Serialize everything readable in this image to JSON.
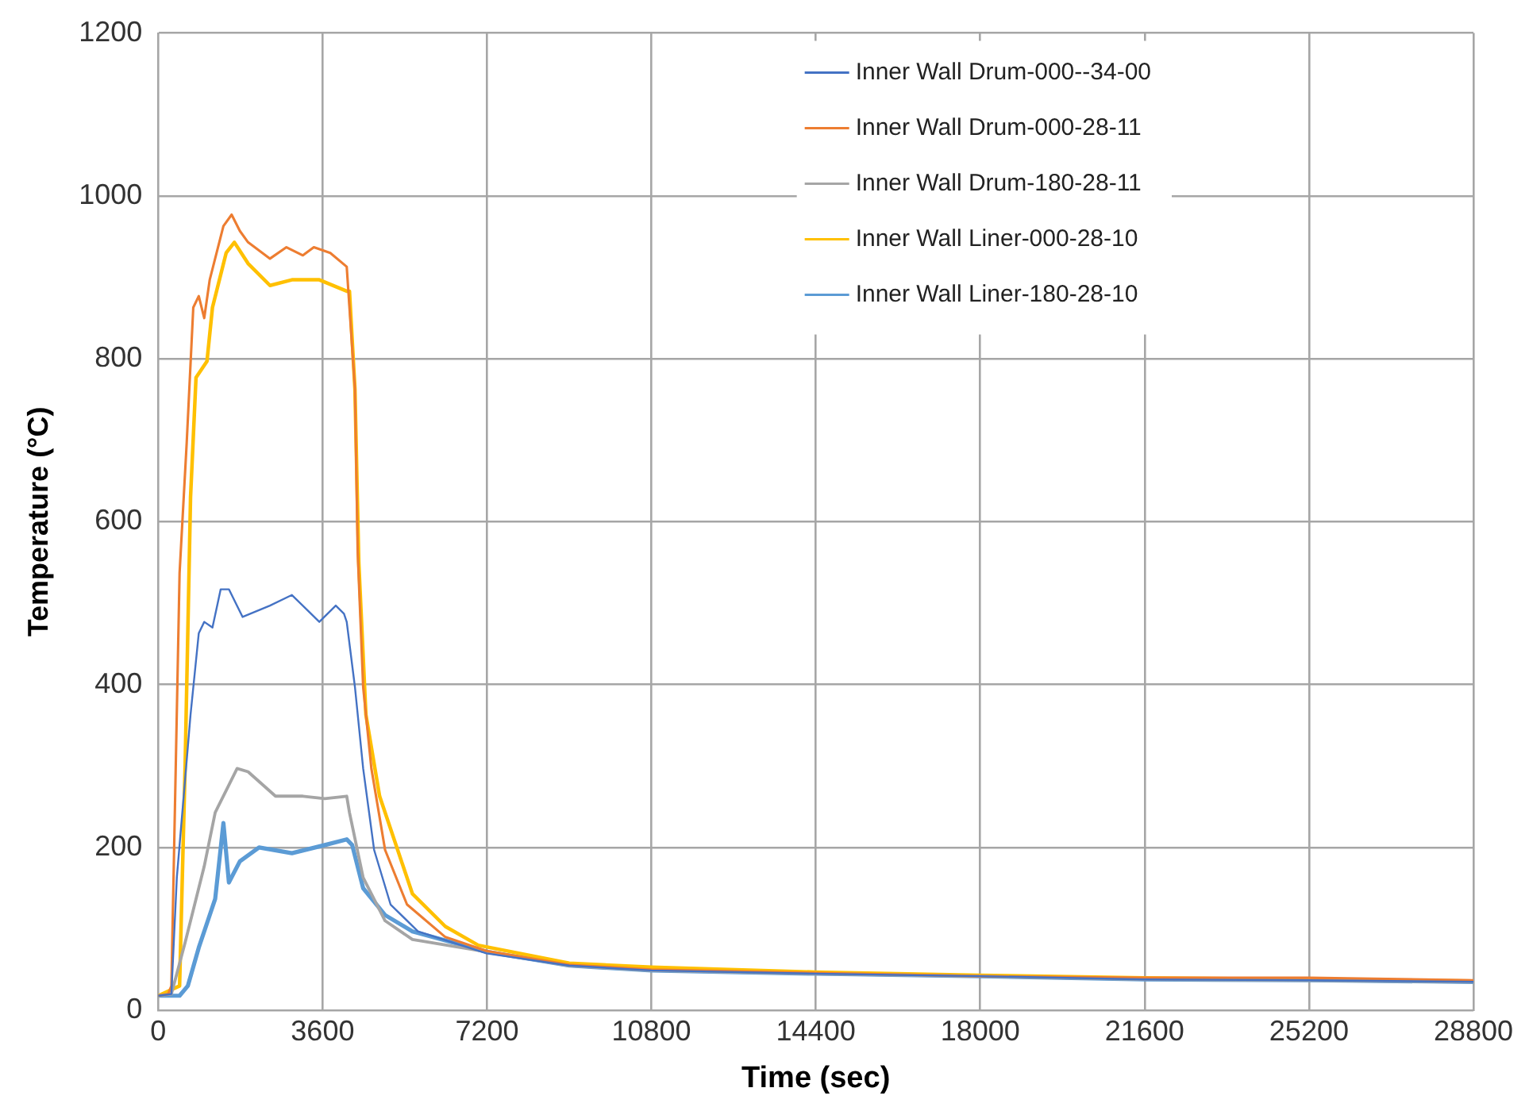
{
  "chart_data": {
    "type": "line",
    "xlabel": "Time (sec)",
    "ylabel": "Temperature (°C)",
    "xlim": [
      0,
      28800
    ],
    "xticks": [
      0,
      3600,
      7200,
      10800,
      14400,
      18000,
      21600,
      25200,
      28800
    ],
    "ylim": [
      0,
      1200
    ],
    "yticks": [
      0,
      200,
      400,
      600,
      800,
      1000,
      1200
    ],
    "grid": true,
    "legend": "top right",
    "marker": "none",
    "line_style": "solid",
    "series": [
      {
        "name": "Inner Wall Drum-000--34-00",
        "color": "#4472c4",
        "x": [
          0,
          288,
          408,
          708,
          888,
          1008,
          1188,
          1368,
          1548,
          1848,
          2448,
          2928,
          3528,
          3888,
          4068,
          4128,
          4308,
          4488,
          4728,
          5088,
          5688,
          7188,
          9000,
          10800,
          14400,
          18000,
          21600,
          25200,
          28800
        ],
        "values": [
          18,
          20,
          163,
          363,
          463,
          477,
          470,
          517,
          517,
          483,
          497,
          510,
          477,
          497,
          487,
          477,
          397,
          297,
          197,
          130,
          97,
          70,
          55,
          49,
          45,
          42,
          38,
          37,
          35
        ]
      },
      {
        "name": "Inner Wall Drum-000-28-11",
        "color": "#ed7d31",
        "x": [
          0,
          220,
          288,
          348,
          468,
          624,
          768,
          888,
          1008,
          1128,
          1428,
          1608,
          1788,
          1968,
          2448,
          2808,
          3168,
          3408,
          3768,
          4128,
          4308,
          4368,
          4488,
          4668,
          4968,
          5448,
          6288,
          7188,
          9000,
          10800,
          14400,
          18000,
          21600,
          25200,
          28800
        ],
        "values": [
          18,
          20,
          30,
          197,
          537,
          697,
          863,
          877,
          850,
          897,
          963,
          977,
          957,
          943,
          923,
          937,
          927,
          937,
          930,
          913,
          763,
          563,
          397,
          297,
          197,
          130,
          90,
          73,
          56,
          50,
          46,
          42,
          40,
          40,
          37
        ]
      },
      {
        "name": "Inner Wall Drum-180-28-11",
        "color": "#a5a5a5",
        "x": [
          0,
          288,
          588,
          1008,
          1248,
          1488,
          1728,
          1968,
          2568,
          3168,
          3648,
          4128,
          4188,
          4488,
          4968,
          5568,
          7188,
          9000,
          10800,
          14400,
          18000,
          21600,
          25200,
          28800
        ],
        "values": [
          18,
          20,
          83,
          177,
          243,
          270,
          297,
          293,
          263,
          263,
          260,
          263,
          243,
          163,
          110,
          87,
          72,
          55,
          49,
          45,
          42,
          38,
          37,
          35
        ]
      },
      {
        "name": "Inner Wall Liner-000-28-10",
        "color": "#ffc000",
        "x": [
          0,
          468,
          588,
          708,
          828,
          1068,
          1188,
          1488,
          1668,
          1968,
          2448,
          2928,
          3528,
          4128,
          4188,
          4308,
          4392,
          4548,
          4848,
          5568,
          6288,
          7008,
          9000,
          10800,
          14400,
          18000,
          21600,
          25200,
          28800
        ],
        "values": [
          18,
          30,
          297,
          630,
          777,
          797,
          863,
          930,
          943,
          917,
          890,
          897,
          897,
          883,
          883,
          763,
          550,
          363,
          263,
          143,
          103,
          80,
          58,
          53,
          47,
          43,
          40,
          38,
          36
        ]
      },
      {
        "name": "Inner Wall Liner-180-28-10",
        "color": "#5b9bd5",
        "x": [
          0,
          468,
          648,
          888,
          1248,
          1428,
          1548,
          1788,
          2208,
          2928,
          3648,
          4128,
          4248,
          4488,
          4968,
          5568,
          7188,
          9000,
          10800,
          14400,
          18000,
          21600,
          25200,
          28800
        ],
        "values": [
          18,
          18,
          30,
          77,
          137,
          230,
          157,
          183,
          200,
          193,
          203,
          210,
          203,
          150,
          117,
          97,
          72,
          55,
          49,
          45,
          42,
          38,
          37,
          35
        ]
      }
    ]
  }
}
